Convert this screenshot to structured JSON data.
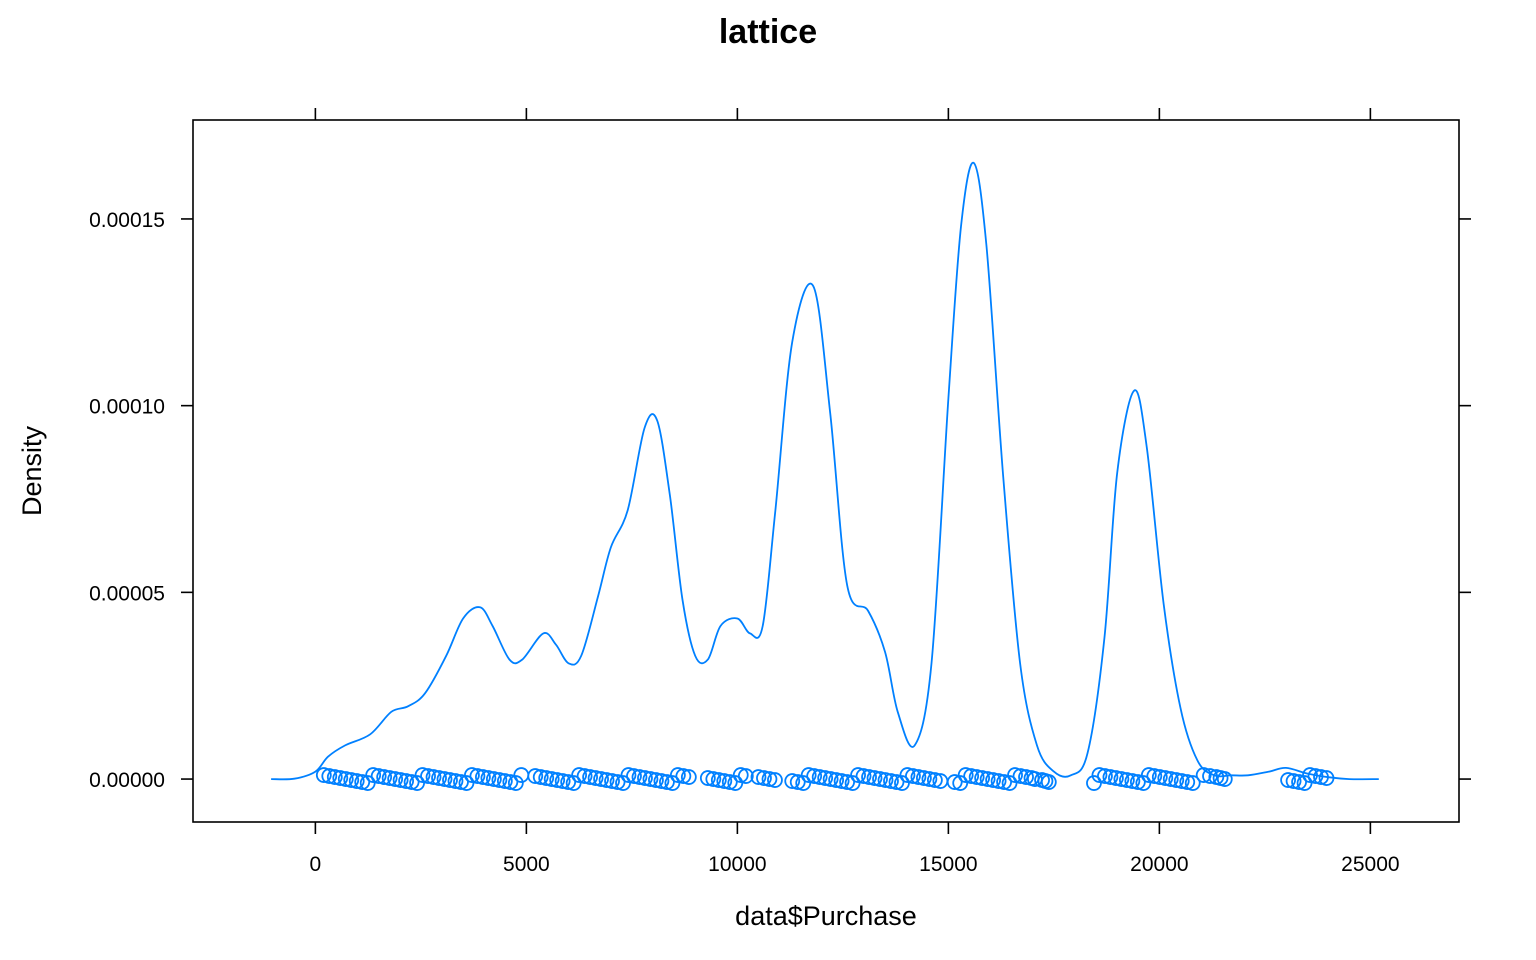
{
  "chart_data": {
    "type": "line",
    "title": "lattice",
    "xlabel": "data$Purchase",
    "ylabel": "Density",
    "xlim": [
      -2900,
      27100
    ],
    "ylim": [
      -1.15e-05,
      0.0001765
    ],
    "x_ticks": [
      0,
      5000,
      10000,
      15000,
      20000,
      25000
    ],
    "x_tick_labels": [
      "0",
      "5000",
      "10000",
      "15000",
      "20000",
      "25000"
    ],
    "y_ticks": [
      0,
      5e-05,
      0.0001,
      0.00015
    ],
    "y_tick_labels": [
      "0.00000",
      "0.00005",
      "0.00010",
      "0.00015"
    ],
    "grid": false,
    "color": "#0080ff",
    "series": [
      {
        "values_x": [
          -1050,
          -500,
          0,
          300,
          700,
          1300,
          1800,
          2200,
          2600,
          3100,
          3500,
          3900,
          4200,
          4600,
          4900,
          5400,
          5700,
          6000,
          6300,
          6700,
          7000,
          7400,
          7800,
          8100,
          8400,
          8700,
          9000,
          9300,
          9600,
          10000,
          10300,
          10600,
          10900,
          11300,
          11800,
          12200,
          12600,
          13100,
          13500,
          13800,
          14200,
          14600,
          15000,
          15300,
          15600,
          15900,
          16300,
          16700,
          17100,
          17500,
          17900,
          18300,
          18700,
          19000,
          19400,
          19700,
          20100,
          20500,
          20900,
          21300,
          21700,
          22100,
          22600,
          23000,
          23500,
          24000,
          24500,
          25200
        ],
        "values_y": [
          0.0,
          1e-07,
          2e-06,
          6e-06,
          9e-06,
          1.2e-05,
          1.8e-05,
          1.95e-05,
          2.3e-05,
          3.3e-05,
          4.3e-05,
          4.6e-05,
          4.1e-05,
          3.2e-05,
          3.2e-05,
          3.9e-05,
          3.6e-05,
          3.1e-05,
          3.3e-05,
          4.9e-05,
          6.2e-05,
          7.2e-05,
          9.4e-05,
          9.6e-05,
          7.6e-05,
          4.8e-05,
          3.3e-05,
          3.2e-05,
          4.1e-05,
          4.3e-05,
          3.9e-05,
          4.1e-05,
          7.2e-05,
          0.000117,
          0.000132,
          9.8e-05,
          5.2e-05,
          4.5e-05,
          3.4e-05,
          1.8e-05,
          9e-06,
          3.1e-05,
          0.000102,
          0.000148,
          0.000165,
          0.000143,
          8.1e-05,
          3.1e-05,
          9e-06,
          2e-06,
          1e-06,
          7e-06,
          3.8e-05,
          8.2e-05,
          0.000104,
          8.9e-05,
          4.7e-05,
          1.9e-05,
          5e-06,
          1e-06,
          1e-06,
          1e-06,
          2e-06,
          3e-06,
          1.5e-06,
          5e-07,
          0.0,
          0.0
        ]
      }
    ],
    "rug_points": [
      200,
      330,
      460,
      590,
      720,
      850,
      980,
      1110,
      1240,
      1370,
      1500,
      1630,
      1760,
      1890,
      2020,
      2150,
      2280,
      2410,
      2540,
      2670,
      2800,
      2930,
      3060,
      3190,
      3320,
      3450,
      3580,
      3710,
      3840,
      3970,
      4100,
      4230,
      4360,
      4490,
      4620,
      4750,
      4880,
      5210,
      5340,
      5470,
      5600,
      5730,
      5860,
      5990,
      6120,
      6250,
      6380,
      6510,
      6640,
      6770,
      6900,
      7030,
      7160,
      7290,
      7420,
      7550,
      7680,
      7810,
      7940,
      8070,
      8200,
      8330,
      8460,
      8590,
      8720,
      8850,
      9300,
      9430,
      9560,
      9690,
      9820,
      9950,
      10080,
      10200,
      10500,
      10630,
      10760,
      10890,
      11300,
      11430,
      11560,
      11690,
      11820,
      11950,
      12080,
      12210,
      12340,
      12470,
      12600,
      12730,
      12860,
      12990,
      13120,
      13250,
      13380,
      13510,
      13640,
      13770,
      13900,
      14030,
      14160,
      14290,
      14420,
      14550,
      14680,
      14810,
      15150,
      15280,
      15410,
      15540,
      15670,
      15800,
      15930,
      16060,
      16190,
      16320,
      16450,
      16580,
      16710,
      16840,
      16970,
      17050,
      17220,
      17300,
      17380,
      18450,
      18580,
      18710,
      18840,
      18970,
      19100,
      19230,
      19360,
      19490,
      19620,
      19750,
      19880,
      20010,
      20140,
      20270,
      20400,
      20530,
      20660,
      20790,
      21050,
      21200,
      21350,
      21450,
      21550,
      23050,
      23180,
      23310,
      23440,
      23570,
      23700,
      23830,
      23960
    ]
  }
}
